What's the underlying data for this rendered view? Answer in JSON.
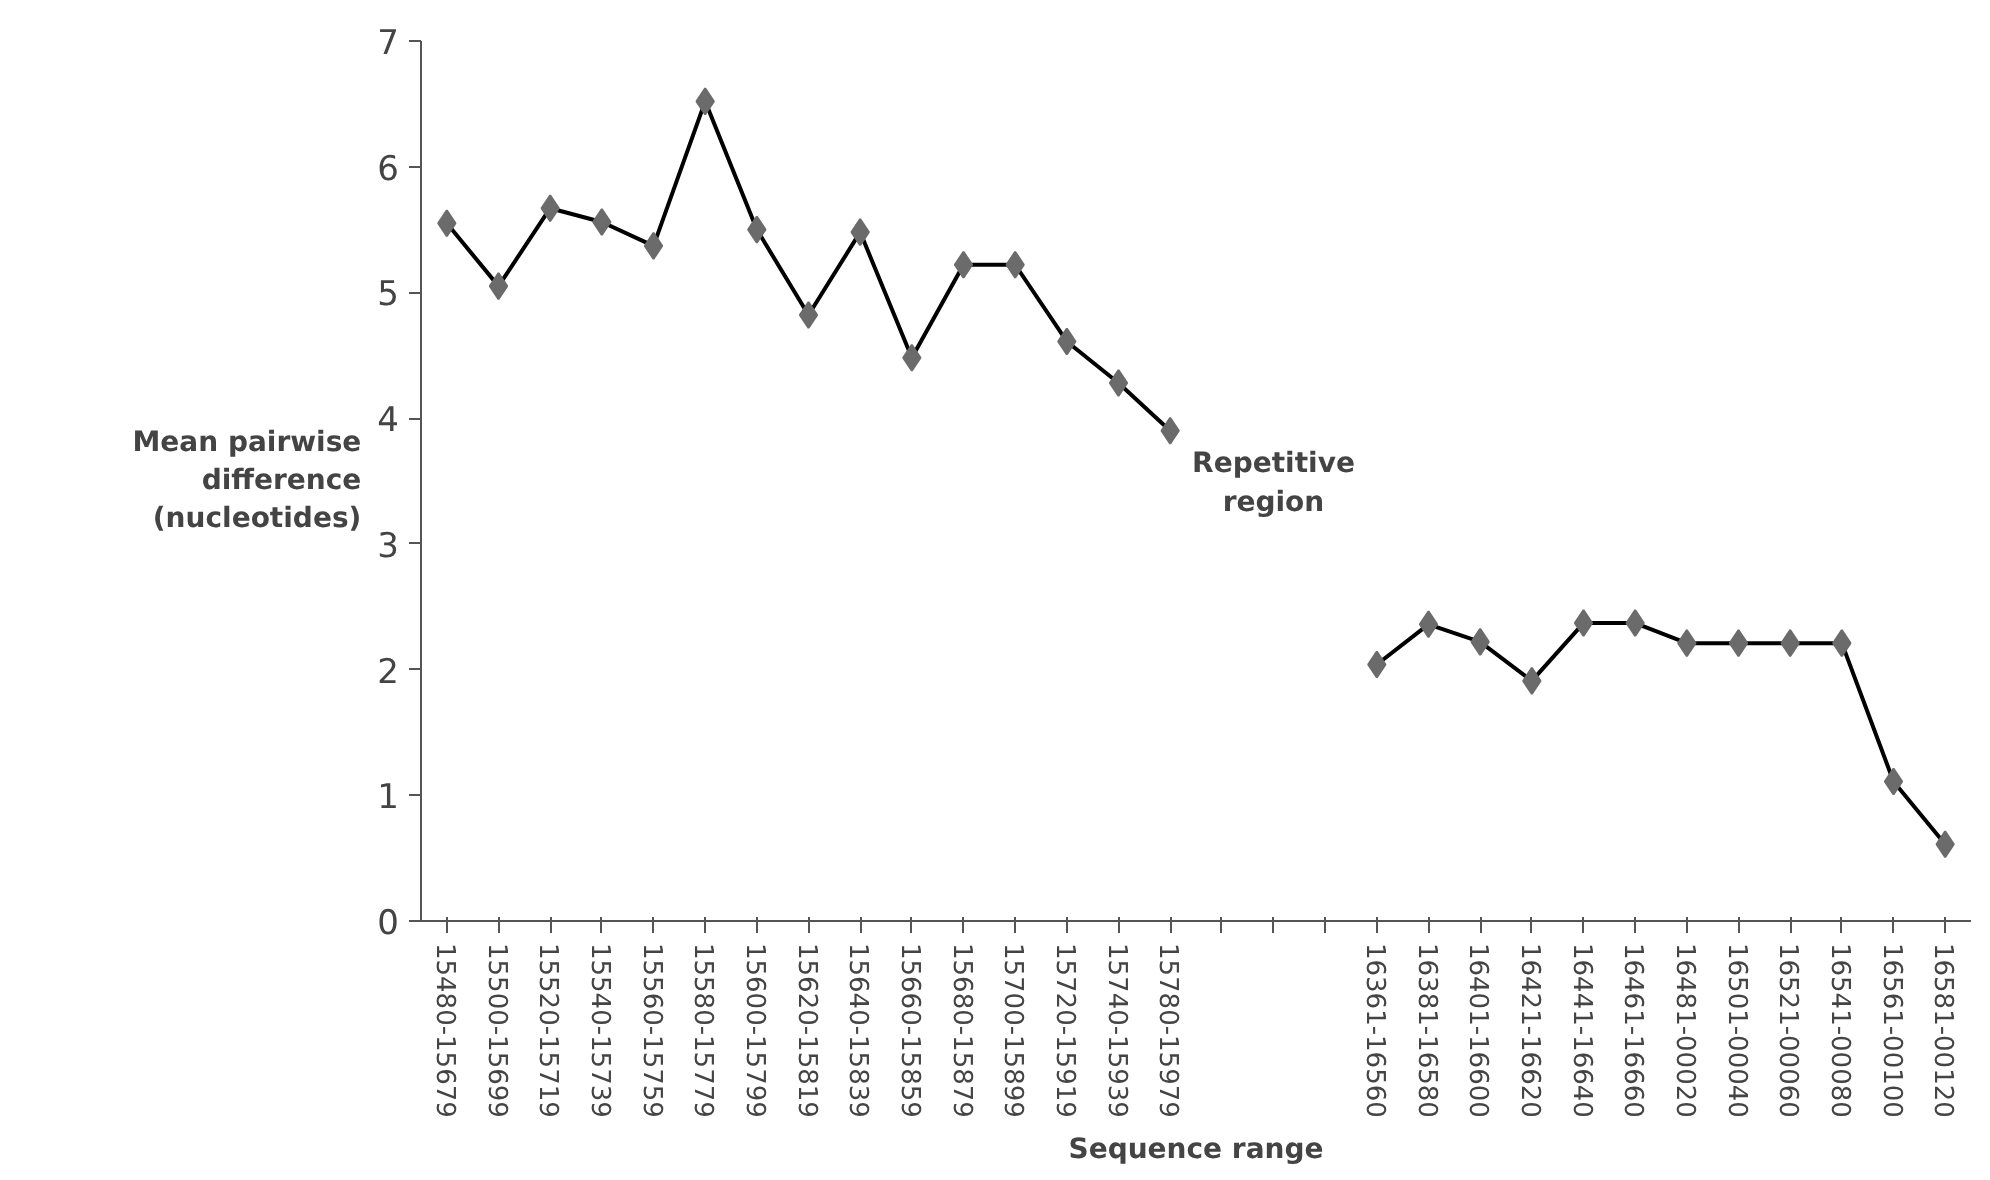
{
  "chart_data": {
    "type": "line",
    "xlabel": "Sequence range",
    "ylabel": "Mean pairwise difference (nucleotides)",
    "categories": [
      "15480-15679",
      "15500-15699",
      "15520-15719",
      "15540-15739",
      "15560-15759",
      "15580-15779",
      "15600-15799",
      "15620-15819",
      "15640-15839",
      "15660-15859",
      "15680-15879",
      "15700-15899",
      "15720-15919",
      "15740-15939",
      "15780-15979",
      null,
      null,
      null,
      "16361-16560",
      "16381-16580",
      "16401-16600",
      "16421-16620",
      "16441-16640",
      "16461-16660",
      "16481-00020",
      "16501-00040",
      "16521-00060",
      "16541-00080",
      "16561-00100",
      "16581-00120"
    ],
    "series": [
      {
        "color": "#000000",
        "values": [
          5.55,
          5.05,
          5.67,
          5.56,
          5.37,
          6.52,
          5.5,
          4.82,
          5.48,
          4.48,
          5.22,
          5.22,
          4.61,
          4.28,
          3.9,
          null,
          null,
          null,
          2.04,
          2.36,
          2.22,
          1.91,
          2.37,
          2.37,
          2.21,
          2.21,
          2.21,
          2.21,
          1.11,
          0.61
        ]
      }
    ],
    "ylim": [
      0,
      7
    ],
    "yticks": [
      0,
      1,
      2,
      3,
      4,
      5,
      6,
      7
    ],
    "grid": false,
    "marker": "diamond",
    "line_style": "solid",
    "annotations": [
      "Repetitive region"
    ]
  }
}
